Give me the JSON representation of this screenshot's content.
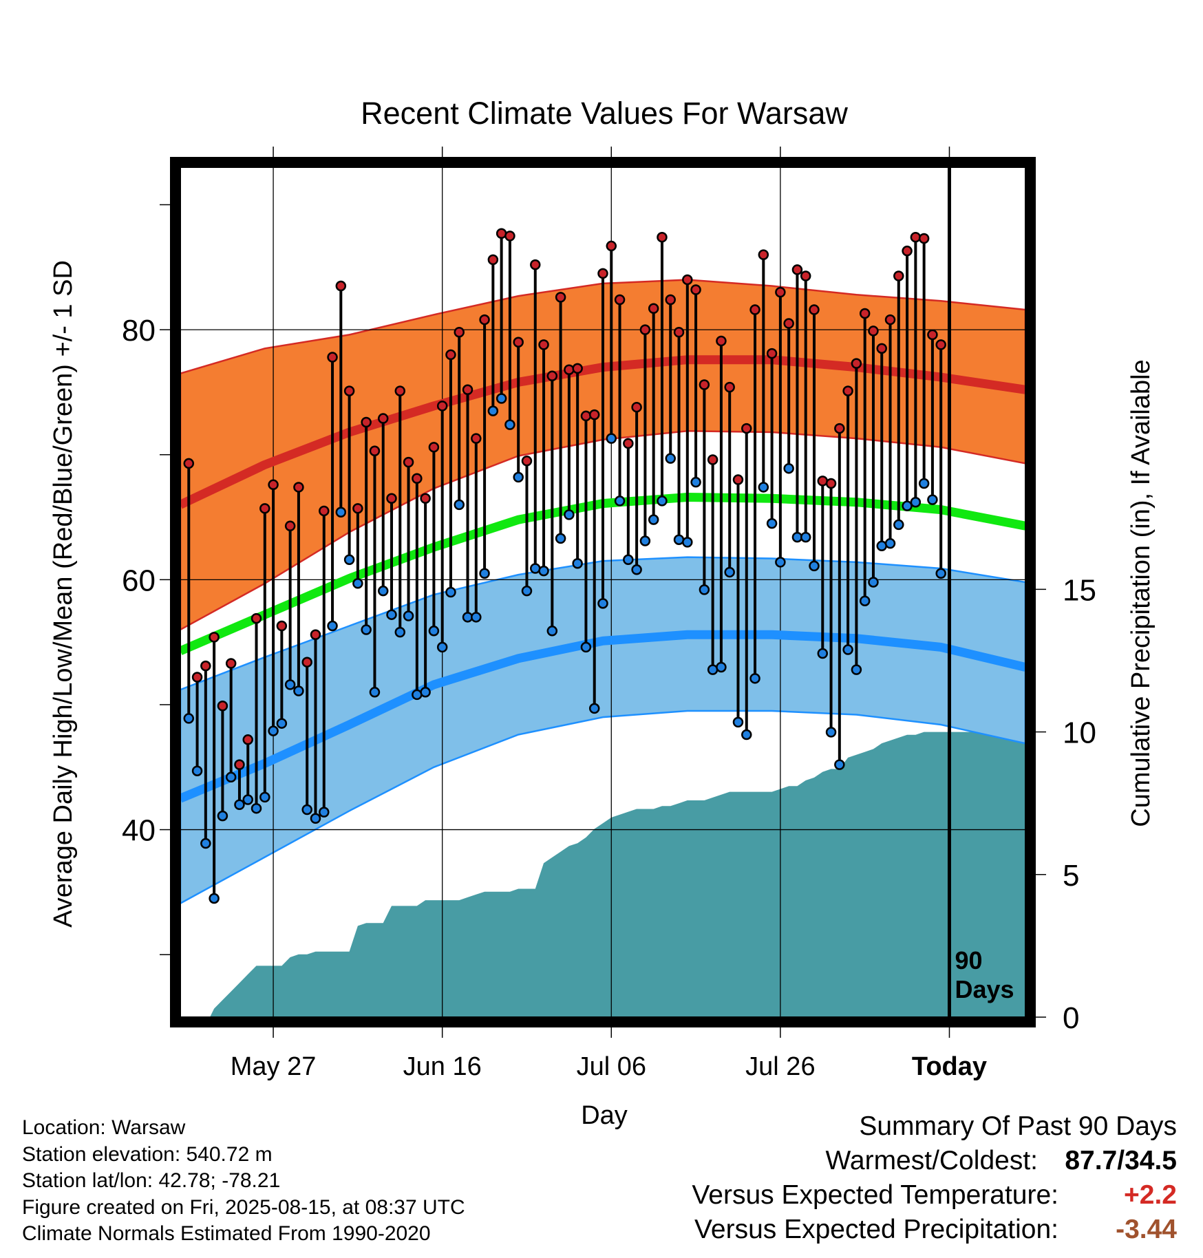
{
  "chart_data": {
    "type": "line",
    "title": "Recent Climate Values For Warsaw",
    "xlabel": "Day",
    "ylabel_left": "Average Daily High/Low/Mean (Red/Blue/Green) +/- 1 SD",
    "ylabel_right": "Cumulative Precipitation (in), If Available",
    "x_tick_labels": [
      "May 27",
      "Jun 16",
      "Jul 06",
      "Jul 26",
      "Today"
    ],
    "x_tick_days": [
      17,
      37,
      57,
      77,
      97
    ],
    "xlim_days": [
      6,
      106
    ],
    "ylim_left": [
      25,
      93
    ],
    "left_ticks": [
      40,
      60,
      80
    ],
    "left_minor_ticks": [
      30,
      50,
      70,
      90
    ],
    "ylim_right": [
      0,
      29.8
    ],
    "right_ticks": [
      0,
      5,
      10,
      15
    ],
    "today_marker_label": "90\nDays",
    "normals_days": [
      6,
      16,
      26,
      36,
      46,
      56,
      66,
      76,
      86,
      96,
      106
    ],
    "normal_high": [
      66.0,
      69.2,
      71.8,
      73.9,
      75.8,
      77.0,
      77.6,
      77.6,
      77.0,
      76.2,
      75.2
    ],
    "normal_high_upper": [
      76.5,
      78.5,
      79.6,
      81.2,
      82.7,
      83.7,
      84.0,
      83.5,
      82.8,
      82.3,
      81.6
    ],
    "normal_high_lower": [
      56.0,
      59.7,
      63.8,
      67.3,
      69.9,
      71.2,
      71.9,
      71.8,
      71.3,
      70.6,
      69.3
    ],
    "normal_mean": [
      54.3,
      57.2,
      60.1,
      62.6,
      64.8,
      66.1,
      66.6,
      66.5,
      66.2,
      65.6,
      64.3
    ],
    "normal_low": [
      42.5,
      45.3,
      48.4,
      51.6,
      53.7,
      55.1,
      55.6,
      55.6,
      55.3,
      54.6,
      53.0
    ],
    "normal_low_upper": [
      51.2,
      53.8,
      56.3,
      58.8,
      60.4,
      61.5,
      61.8,
      61.7,
      61.4,
      60.9,
      59.8
    ],
    "normal_low_lower": [
      34.1,
      37.8,
      41.5,
      45.0,
      47.6,
      49.0,
      49.5,
      49.5,
      49.2,
      48.4,
      46.9
    ],
    "daily_days": [
      7,
      8,
      9,
      10,
      11,
      12,
      13,
      14,
      15,
      16,
      17,
      18,
      19,
      20,
      21,
      22,
      23,
      24,
      25,
      26,
      27,
      28,
      29,
      30,
      31,
      32,
      33,
      34,
      35,
      36,
      37,
      38,
      39,
      40,
      41,
      42,
      43,
      44,
      45,
      46,
      47,
      48,
      49,
      50,
      51,
      52,
      53,
      54,
      55,
      56,
      57,
      58,
      59,
      60,
      61,
      62,
      63,
      64,
      65,
      66,
      67,
      68,
      69,
      70,
      71,
      72,
      73,
      74,
      75,
      76,
      77,
      78,
      79,
      80,
      81,
      82,
      83,
      84,
      85,
      86,
      87,
      88,
      89,
      90,
      91,
      92,
      93,
      94,
      95,
      96
    ],
    "daily_high": [
      69.3,
      52.2,
      53.1,
      55.4,
      49.9,
      53.3,
      45.2,
      47.2,
      56.9,
      65.7,
      67.6,
      56.3,
      64.3,
      67.4,
      53.4,
      55.6,
      65.5,
      77.8,
      83.5,
      75.1,
      65.7,
      72.6,
      70.3,
      72.9,
      66.5,
      75.1,
      69.4,
      68.1,
      66.5,
      70.6,
      73.9,
      78.0,
      79.8,
      75.2,
      71.3,
      80.8,
      85.6,
      87.7,
      87.5,
      79.0,
      69.5,
      85.2,
      78.8,
      76.3,
      82.6,
      76.8,
      76.9,
      73.1,
      73.2,
      84.5,
      86.7,
      82.4,
      70.9,
      73.8,
      80.0,
      81.7,
      87.4,
      82.4,
      79.8,
      84.0,
      83.2,
      75.6,
      69.6,
      79.1,
      75.4,
      68.0,
      72.1,
      81.6,
      86.0,
      78.1,
      83.0,
      80.5,
      84.8,
      84.3,
      81.6,
      67.9,
      67.7,
      72.1,
      75.1,
      77.3,
      81.3,
      79.9,
      78.5,
      80.8,
      84.3,
      86.3,
      87.4,
      87.3,
      79.6,
      78.8
    ],
    "daily_low": [
      48.9,
      44.7,
      38.9,
      34.5,
      41.1,
      44.2,
      42.0,
      42.4,
      41.7,
      42.6,
      47.9,
      48.5,
      51.6,
      51.1,
      41.6,
      40.9,
      41.4,
      56.3,
      65.4,
      61.6,
      59.7,
      56.0,
      51.0,
      59.1,
      57.2,
      55.8,
      57.1,
      50.8,
      51.0,
      55.9,
      54.6,
      59.0,
      66.0,
      57.0,
      57.0,
      60.5,
      73.5,
      74.5,
      72.4,
      68.2,
      59.1,
      60.9,
      60.7,
      55.9,
      63.3,
      65.2,
      61.3,
      54.6,
      49.7,
      58.1,
      71.3,
      66.3,
      61.6,
      60.8,
      63.1,
      64.8,
      66.3,
      69.7,
      63.2,
      63.0,
      67.8,
      59.2,
      52.8,
      53.0,
      60.6,
      48.6,
      47.6,
      52.1,
      67.4,
      64.5,
      61.4,
      68.9,
      63.4,
      63.4,
      61.1,
      54.1,
      47.8,
      45.2,
      54.4,
      52.8,
      58.3,
      59.8,
      62.7,
      62.9,
      64.4,
      65.9,
      66.2,
      67.7,
      66.4,
      60.5
    ],
    "precip_days": [
      9.5,
      10,
      11,
      12,
      13,
      14,
      15,
      16,
      17,
      18,
      19,
      20,
      21,
      22,
      23,
      24,
      25,
      26,
      27,
      28,
      29,
      30,
      31,
      32,
      33,
      34,
      35,
      36,
      37,
      38,
      39,
      40,
      41,
      42,
      43,
      44,
      45,
      46,
      47,
      48,
      49,
      50,
      51,
      52,
      53,
      54,
      55,
      56,
      57,
      58,
      59,
      60,
      61,
      62,
      63,
      64,
      65,
      66,
      67,
      68,
      69,
      70,
      71,
      72,
      73,
      74,
      75,
      76,
      77,
      78,
      79,
      80,
      81,
      82,
      83,
      84,
      85,
      86,
      87,
      88,
      89,
      90,
      91,
      92,
      93,
      94,
      95,
      96,
      97,
      106
    ],
    "precip_cumulative": [
      0.0,
      0.3,
      0.6,
      0.9,
      1.2,
      1.5,
      1.8,
      1.8,
      1.8,
      1.8,
      2.1,
      2.2,
      2.2,
      2.3,
      2.3,
      2.3,
      2.3,
      2.3,
      3.2,
      3.3,
      3.3,
      3.3,
      3.9,
      3.9,
      3.9,
      3.9,
      4.1,
      4.1,
      4.1,
      4.1,
      4.1,
      4.2,
      4.3,
      4.4,
      4.4,
      4.4,
      4.4,
      4.5,
      4.5,
      4.5,
      5.4,
      5.6,
      5.8,
      6.0,
      6.1,
      6.3,
      6.6,
      6.8,
      7.0,
      7.1,
      7.2,
      7.3,
      7.3,
      7.3,
      7.4,
      7.4,
      7.5,
      7.6,
      7.6,
      7.6,
      7.7,
      7.8,
      7.9,
      7.9,
      7.9,
      7.9,
      7.9,
      7.9,
      8.0,
      8.1,
      8.1,
      8.3,
      8.4,
      8.6,
      8.7,
      8.7,
      9.1,
      9.2,
      9.3,
      9.4,
      9.6,
      9.7,
      9.8,
      9.9,
      9.9,
      10.0,
      10.0,
      10.0,
      10.0,
      10.0
    ]
  },
  "summary": {
    "heading": "Summary Of Past 90 Days",
    "warmest_coldest_label": "Warmest/Coldest:",
    "warmest_coldest_value": "87.7/34.5",
    "temp_label": "Versus Expected Temperature:",
    "temp_value": "+2.2",
    "precip_label": "Versus Expected Precipitation:",
    "precip_value": "-3.44"
  },
  "info": {
    "location": "Location: Warsaw",
    "elevation": "Station elevation: 540.72 m",
    "latlon": "Station lat/lon: 42.78; -78.21",
    "created": "Figure created on Fri, 2025-08-15, at 08:37 UTC",
    "normals": "Climate Normals Estimated From 1990-2020"
  },
  "colors": {
    "high_band": "#f47d31",
    "high_line": "#d42a24",
    "mean_line": "#10e810",
    "low_band": "#7fbfe9",
    "low_line": "#1e90ff",
    "precip_fill": "#489ca4",
    "high_dot": "#c8232a",
    "low_dot": "#2080e0"
  }
}
